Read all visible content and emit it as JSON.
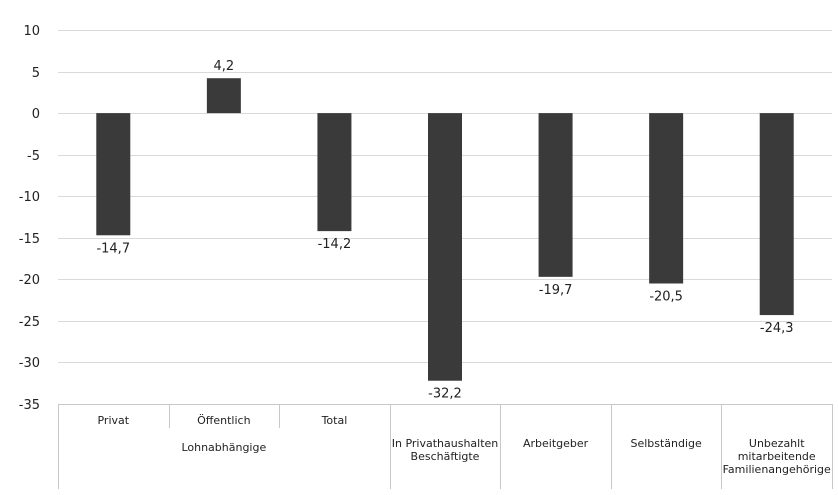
{
  "chart_data": {
    "type": "bar",
    "categories": [
      [
        "Privat"
      ],
      [
        "Öffentlich"
      ],
      [
        "Total"
      ],
      [
        "In Privathaushalten",
        "Beschäftigte"
      ],
      [
        "Arbeitgeber"
      ],
      [
        "Selbständige"
      ],
      [
        "Unbezahlt",
        "mitarbeitende",
        "Familienangehörige"
      ]
    ],
    "group_labels": [
      {
        "label": "Lohnabhängige",
        "categories": [
          0,
          1,
          2
        ]
      }
    ],
    "values": [
      -14.7,
      4.2,
      -14.2,
      -32.2,
      -19.7,
      -20.5,
      -24.3
    ],
    "value_labels": [
      "-14,7",
      "4,2",
      "-14,2",
      "-32,2",
      "-19,7",
      "-20,5",
      "-24,3"
    ],
    "ylim": [
      -35,
      10
    ],
    "yticks": [
      10,
      5,
      0,
      -5,
      -10,
      -15,
      -20,
      -25,
      -30,
      -35
    ],
    "ytick_labels": [
      "10",
      "5",
      "0",
      "-5",
      "-10",
      "-15",
      "-20",
      "-25",
      "-30",
      "-35"
    ],
    "grid": true,
    "bar_color": "#3a3a3a",
    "grid_color": "#d9d9d9",
    "title": "",
    "xlabel": "",
    "ylabel": ""
  }
}
